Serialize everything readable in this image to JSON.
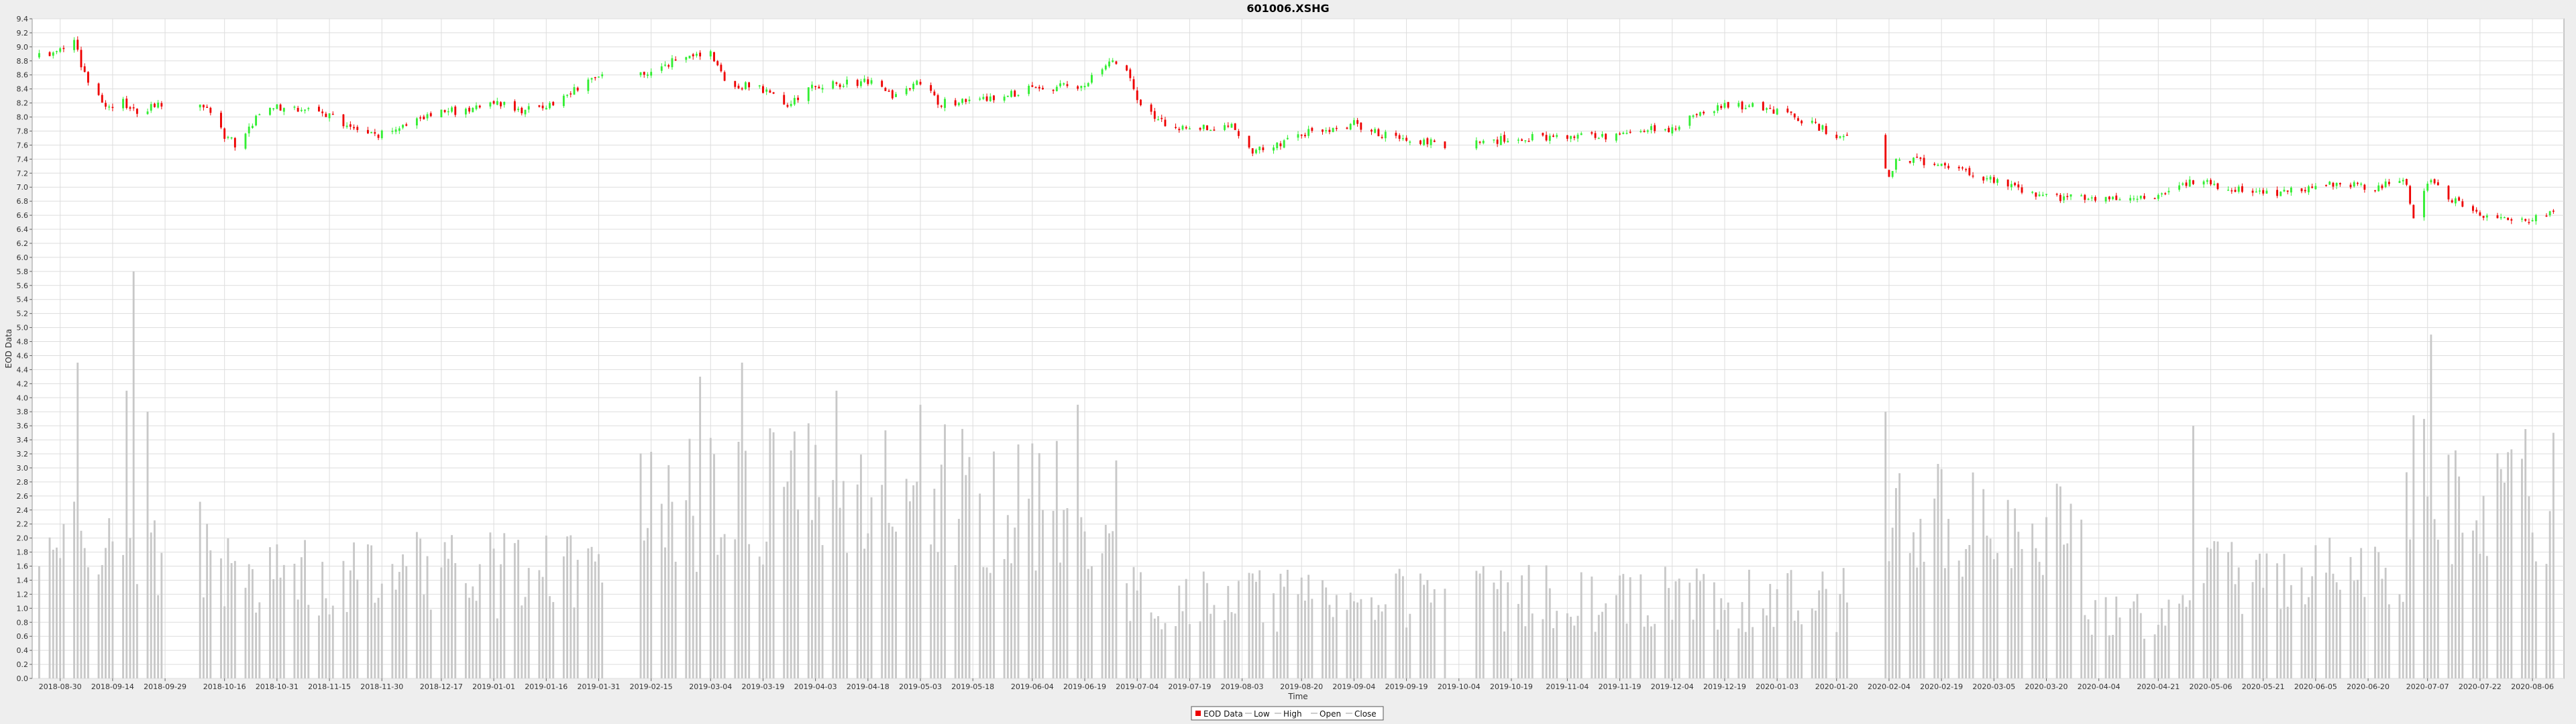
{
  "chart_data": {
    "type": "candlestick",
    "title": "601006.XSHG",
    "xlabel": "Time",
    "ylabel": "EOD Data",
    "ylim": [
      0,
      9.4
    ],
    "y_tick_step": 0.2,
    "grid": true,
    "legend_position": "bottom-center",
    "legend": [
      {
        "label": "EOD Data",
        "kind": "swatch"
      },
      {
        "label": "Low",
        "kind": "line"
      },
      {
        "label": "High",
        "kind": "line"
      },
      {
        "label": "Open",
        "kind": "line"
      },
      {
        "label": "Close",
        "kind": "line"
      }
    ],
    "x_ticks": [
      "2018-08-30",
      "2018-09-14",
      "2018-09-29",
      "2018-10-16",
      "2018-10-31",
      "2018-11-15",
      "2018-11-30",
      "2018-12-17",
      "2019-01-01",
      "2019-01-16",
      "2019-01-31",
      "2019-02-15",
      "2019-03-04",
      "2019-03-19",
      "2019-04-03",
      "2019-04-18",
      "2019-05-03",
      "2019-05-18",
      "2019-06-04",
      "2019-06-19",
      "2019-07-04",
      "2019-07-19",
      "2019-08-03",
      "2019-08-20",
      "2019-09-04",
      "2019-09-19",
      "2019-10-04",
      "2019-10-19",
      "2019-11-04",
      "2019-11-19",
      "2019-12-04",
      "2019-12-19",
      "2020-01-03",
      "2020-01-20",
      "2020-02-04",
      "2020-02-19",
      "2020-03-05",
      "2020-03-20",
      "2020-04-04",
      "2020-04-21",
      "2020-05-06",
      "2020-05-21",
      "2020-06-05",
      "2020-06-20",
      "2020-07-07",
      "2020-07-22",
      "2020-08-06"
    ],
    "price_anchors": [
      {
        "date": "2018-08-24",
        "price": 8.85
      },
      {
        "date": "2018-08-30",
        "price": 9.0
      },
      {
        "date": "2018-09-03",
        "price": 9.1
      },
      {
        "date": "2018-09-06",
        "price": 8.6
      },
      {
        "date": "2018-09-10",
        "price": 8.3
      },
      {
        "date": "2018-09-14",
        "price": 8.1
      },
      {
        "date": "2018-09-17",
        "price": 8.2
      },
      {
        "date": "2018-09-21",
        "price": 8.05
      },
      {
        "date": "2018-09-29",
        "price": 8.2
      },
      {
        "date": "2018-10-12",
        "price": 8.1
      },
      {
        "date": "2018-10-16",
        "price": 7.7
      },
      {
        "date": "2018-10-20",
        "price": 7.6
      },
      {
        "date": "2018-10-25",
        "price": 8.0
      },
      {
        "date": "2018-10-31",
        "price": 8.15
      },
      {
        "date": "2018-11-15",
        "price": 8.05
      },
      {
        "date": "2018-11-22",
        "price": 7.8
      },
      {
        "date": "2018-11-30",
        "price": 7.75
      },
      {
        "date": "2018-12-10",
        "price": 7.95
      },
      {
        "date": "2018-12-17",
        "price": 8.05
      },
      {
        "date": "2019-01-01",
        "price": 8.2
      },
      {
        "date": "2019-01-10",
        "price": 8.1
      },
      {
        "date": "2019-01-16",
        "price": 8.15
      },
      {
        "date": "2019-01-31",
        "price": 8.6
      },
      {
        "date": "2019-02-05",
        "price": 8.7
      },
      {
        "date": "2019-02-15",
        "price": 8.65
      },
      {
        "date": "2019-02-25",
        "price": 8.9
      },
      {
        "date": "2019-03-04",
        "price": 8.9
      },
      {
        "date": "2019-03-08",
        "price": 8.5
      },
      {
        "date": "2019-03-19",
        "price": 8.4
      },
      {
        "date": "2019-03-26",
        "price": 8.2
      },
      {
        "date": "2019-04-03",
        "price": 8.45
      },
      {
        "date": "2019-04-18",
        "price": 8.5
      },
      {
        "date": "2019-04-26",
        "price": 8.3
      },
      {
        "date": "2019-05-03",
        "price": 8.5
      },
      {
        "date": "2019-05-08",
        "price": 8.2
      },
      {
        "date": "2019-05-18",
        "price": 8.2
      },
      {
        "date": "2019-06-04",
        "price": 8.4
      },
      {
        "date": "2019-06-19",
        "price": 8.45
      },
      {
        "date": "2019-06-26",
        "price": 8.8
      },
      {
        "date": "2019-06-30",
        "price": 8.8
      },
      {
        "date": "2019-07-04",
        "price": 8.2
      },
      {
        "date": "2019-07-12",
        "price": 7.9
      },
      {
        "date": "2019-07-19",
        "price": 7.8
      },
      {
        "date": "2019-07-30",
        "price": 7.9
      },
      {
        "date": "2019-08-06",
        "price": 7.5
      },
      {
        "date": "2019-08-12",
        "price": 7.6
      },
      {
        "date": "2019-08-20",
        "price": 7.75
      },
      {
        "date": "2019-09-04",
        "price": 7.9
      },
      {
        "date": "2019-09-19",
        "price": 7.65
      },
      {
        "date": "2019-10-04",
        "price": 7.6
      },
      {
        "date": "2019-10-19",
        "price": 7.7
      },
      {
        "date": "2019-11-04",
        "price": 7.7
      },
      {
        "date": "2019-11-19",
        "price": 7.75
      },
      {
        "date": "2019-12-04",
        "price": 7.85
      },
      {
        "date": "2019-12-19",
        "price": 8.2
      },
      {
        "date": "2020-01-03",
        "price": 8.1
      },
      {
        "date": "2020-01-20",
        "price": 7.75
      },
      {
        "date": "2020-02-01",
        "price": 7.65
      },
      {
        "date": "2020-02-04",
        "price": 7.1
      },
      {
        "date": "2020-02-06",
        "price": 7.4
      },
      {
        "date": "2020-02-19",
        "price": 7.35
      },
      {
        "date": "2020-03-05",
        "price": 7.1
      },
      {
        "date": "2020-03-12",
        "price": 7.0
      },
      {
        "date": "2020-03-20",
        "price": 6.85
      },
      {
        "date": "2020-04-04",
        "price": 6.85
      },
      {
        "date": "2020-04-21",
        "price": 6.85
      },
      {
        "date": "2020-04-30",
        "price": 7.1
      },
      {
        "date": "2020-05-06",
        "price": 7.05
      },
      {
        "date": "2020-05-21",
        "price": 6.9
      },
      {
        "date": "2020-06-05",
        "price": 7.0
      },
      {
        "date": "2020-06-15",
        "price": 7.05
      },
      {
        "date": "2020-06-20",
        "price": 7.0
      },
      {
        "date": "2020-07-01",
        "price": 7.05
      },
      {
        "date": "2020-07-03",
        "price": 6.6
      },
      {
        "date": "2020-07-07",
        "price": 7.1
      },
      {
        "date": "2020-07-15",
        "price": 6.8
      },
      {
        "date": "2020-07-22",
        "price": 6.6
      },
      {
        "date": "2020-07-30",
        "price": 6.55
      },
      {
        "date": "2020-08-06",
        "price": 6.55
      },
      {
        "date": "2020-08-12",
        "price": 6.65
      }
    ],
    "volume_profile": [
      {
        "from": "2018-08-24",
        "to": "2018-10-12",
        "level": 1.9
      },
      {
        "from": "2018-10-12",
        "to": "2019-02-01",
        "level": 1.55
      },
      {
        "from": "2019-02-10",
        "to": "2019-07-01",
        "level": 2.7
      },
      {
        "from": "2019-07-01",
        "to": "2019-10-01",
        "level": 1.2
      },
      {
        "from": "2019-10-08",
        "to": "2020-01-23",
        "level": 1.2
      },
      {
        "from": "2020-02-03",
        "to": "2020-03-31",
        "level": 2.3
      },
      {
        "from": "2020-03-31",
        "to": "2020-04-30",
        "level": 0.9
      },
      {
        "from": "2020-04-30",
        "to": "2020-06-30",
        "level": 1.5
      },
      {
        "from": "2020-07-01",
        "to": "2020-08-12",
        "level": 2.8
      }
    ],
    "volume_peaks": [
      {
        "date": "2018-09-04",
        "value": 4.5
      },
      {
        "date": "2018-09-18",
        "value": 4.1
      },
      {
        "date": "2018-09-20",
        "value": 5.8
      },
      {
        "date": "2018-09-24",
        "value": 3.8
      },
      {
        "date": "2019-03-01",
        "value": 4.3
      },
      {
        "date": "2019-03-13",
        "value": 4.5
      },
      {
        "date": "2019-04-09",
        "value": 4.1
      },
      {
        "date": "2019-05-03",
        "value": 3.9
      },
      {
        "date": "2019-06-17",
        "value": 3.9
      },
      {
        "date": "2020-02-03",
        "value": 3.8
      },
      {
        "date": "2020-05-01",
        "value": 3.6
      },
      {
        "date": "2020-07-08",
        "value": 4.9
      },
      {
        "date": "2020-08-12",
        "value": 3.5
      }
    ],
    "colors": {
      "up": "#33ee33",
      "down": "#ee0000",
      "volume": "#c8c8c8",
      "grid": "#dddddd",
      "plot_bg": "#ffffff"
    }
  }
}
